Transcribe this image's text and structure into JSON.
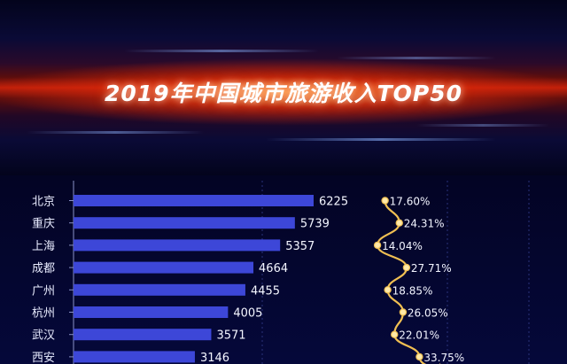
{
  "chart_data": {
    "type": "bar",
    "title": "2019年中国城市旅游收入TOP50",
    "categories": [
      "北京",
      "重庆",
      "上海",
      "成都",
      "广州",
      "杭州",
      "武汉",
      "西安"
    ],
    "series": [
      {
        "values": [
          6225,
          5739,
          5357,
          4664,
          4455,
          4005,
          3571,
          3146
        ]
      },
      {
        "values": [
          17.6,
          24.31,
          14.04,
          27.71,
          18.85,
          26.05,
          22.01,
          33.75
        ]
      }
    ],
    "percent_labels": [
      "17.60%",
      "24.31%",
      "14.04%",
      "27.71%",
      "18.85%",
      "26.05%",
      "22.01%",
      "33.75%"
    ],
    "orientation": "horizontal",
    "xlim": [
      0,
      7000
    ],
    "grid": true,
    "legend": "none",
    "colors": {
      "bar": "#3d47d8",
      "line": "#f0bf52",
      "marker": "#ffe9a8"
    }
  }
}
